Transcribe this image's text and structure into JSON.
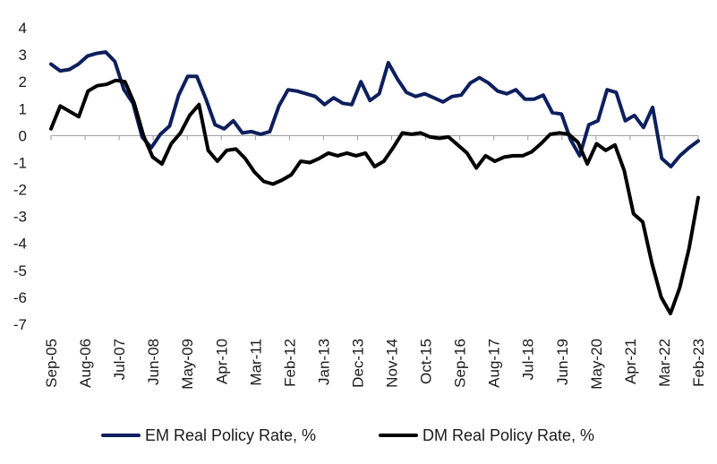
{
  "chart_data": {
    "type": "line",
    "title": "",
    "xlabel": "",
    "ylabel": "",
    "ylim": [
      -7,
      4
    ],
    "yticks": [
      4,
      3,
      2,
      1,
      0,
      -1,
      -2,
      -3,
      -4,
      -5,
      -6,
      -7
    ],
    "grid": false,
    "legend_position": "bottom-center",
    "x_tick_labels": [
      "Sep-05",
      "Aug-06",
      "Jul-07",
      "Jun-08",
      "May-09",
      "Apr-10",
      "Mar-11",
      "Feb-12",
      "Jan-13",
      "Dec-13",
      "Nov-14",
      "Oct-15",
      "Sep-16",
      "Aug-17",
      "Jul-18",
      "Jun-19",
      "May-20",
      "Apr-21",
      "Mar-22",
      "Feb-23"
    ],
    "x_start": "Sep-05",
    "x_end": "Feb-23",
    "point_frequency": "quarterly",
    "series": [
      {
        "name": "EM Real Policy Rate, %",
        "color": "#0d1f5c",
        "values": [
          2.65,
          2.4,
          2.45,
          2.65,
          2.95,
          3.05,
          3.1,
          2.75,
          1.7,
          1.2,
          -0.05,
          -0.45,
          0.05,
          0.35,
          1.5,
          2.2,
          2.2,
          1.35,
          0.4,
          0.25,
          0.55,
          0.1,
          0.15,
          0.05,
          0.15,
          1.1,
          1.7,
          1.65,
          1.55,
          1.45,
          1.15,
          1.4,
          1.2,
          1.15,
          2.0,
          1.3,
          1.55,
          2.7,
          2.1,
          1.6,
          1.45,
          1.55,
          1.4,
          1.25,
          1.45,
          1.5,
          1.95,
          2.15,
          1.95,
          1.65,
          1.55,
          1.7,
          1.35,
          1.35,
          1.5,
          0.85,
          0.8,
          -0.15,
          -0.75,
          0.4,
          0.55,
          1.7,
          1.6,
          0.55,
          0.75,
          0.3,
          1.05,
          -0.85,
          -1.15,
          -0.75,
          -0.45,
          -0.2
        ]
      },
      {
        "name": "DM Real Policy Rate, %",
        "color": "#000000",
        "values": [
          0.25,
          1.1,
          0.9,
          0.7,
          1.65,
          1.85,
          1.9,
          2.05,
          2.0,
          1.2,
          0.0,
          -0.8,
          -1.05,
          -0.3,
          0.1,
          0.75,
          1.15,
          -0.55,
          -0.95,
          -0.55,
          -0.5,
          -0.85,
          -1.35,
          -1.7,
          -1.8,
          -1.65,
          -1.45,
          -0.95,
          -1.0,
          -0.85,
          -0.65,
          -0.75,
          -0.65,
          -0.75,
          -0.65,
          -1.15,
          -0.95,
          -0.45,
          0.1,
          0.05,
          0.1,
          -0.05,
          -0.1,
          -0.05,
          -0.35,
          -0.65,
          -1.2,
          -0.75,
          -0.95,
          -0.8,
          -0.75,
          -0.75,
          -0.6,
          -0.3,
          0.05,
          0.1,
          0.05,
          -0.25,
          -1.05,
          -0.3,
          -0.55,
          -0.35,
          -1.3,
          -2.9,
          -3.2,
          -4.75,
          -6.0,
          -6.6,
          -5.65,
          -4.2,
          -2.3
        ]
      }
    ]
  }
}
